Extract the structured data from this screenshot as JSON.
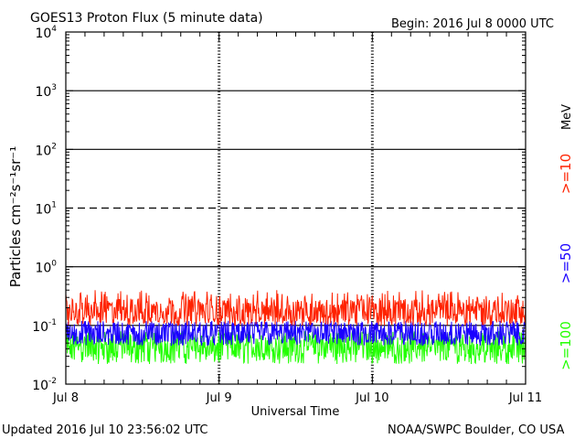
{
  "chart_data": {
    "type": "line",
    "title": "GOES13 Proton Flux (5 minute data)",
    "begin_label": "Begin: 2016 Jul 8 0000 UTC",
    "xlabel": "Universal Time",
    "ylabel": "Particles cm⁻²s⁻¹sr⁻¹",
    "energy_unit": "MeV",
    "x_ticks": [
      "Jul 8",
      "Jul 9",
      "Jul 10",
      "Jul 11"
    ],
    "x_range_days": [
      0,
      3
    ],
    "y_scale": "log",
    "y_range": [
      0.01,
      10000
    ],
    "y_ticks": [
      {
        "value": 0.01,
        "base": "10",
        "exp": "-2"
      },
      {
        "value": 0.1,
        "base": "10",
        "exp": "-1"
      },
      {
        "value": 1,
        "base": "10",
        "exp": "0"
      },
      {
        "value": 10,
        "base": "10",
        "exp": "1"
      },
      {
        "value": 100,
        "base": "10",
        "exp": "2"
      },
      {
        "value": 1000,
        "base": "10",
        "exp": "3"
      },
      {
        "value": 10000,
        "base": "10",
        "exp": "4"
      }
    ],
    "threshold_lines": [
      {
        "value": 10,
        "style": "dashed"
      },
      {
        "value": 1,
        "style": "solid"
      },
      {
        "value": 100,
        "style": "solid"
      },
      {
        "value": 1000,
        "style": "solid"
      },
      {
        "value": 0.1,
        "style": "solid"
      }
    ],
    "series": [
      {
        "name": ">=10",
        "color": "#ff2200",
        "baseline": 0.14,
        "low": 0.1,
        "high": 0.28,
        "spike_max": 0.4
      },
      {
        "name": ">=50",
        "color": "#1a00ff",
        "baseline": 0.06,
        "low": 0.045,
        "high": 0.11,
        "spike_max": 0.12
      },
      {
        "name": ">=100",
        "color": "#22ff00",
        "baseline": 0.035,
        "low": 0.022,
        "high": 0.07,
        "spike_max": 0.08
      }
    ]
  },
  "footer": {
    "updated": "Updated 2016 Jul 10 23:56:02 UTC",
    "credit": "NOAA/SWPC Boulder, CO USA"
  }
}
